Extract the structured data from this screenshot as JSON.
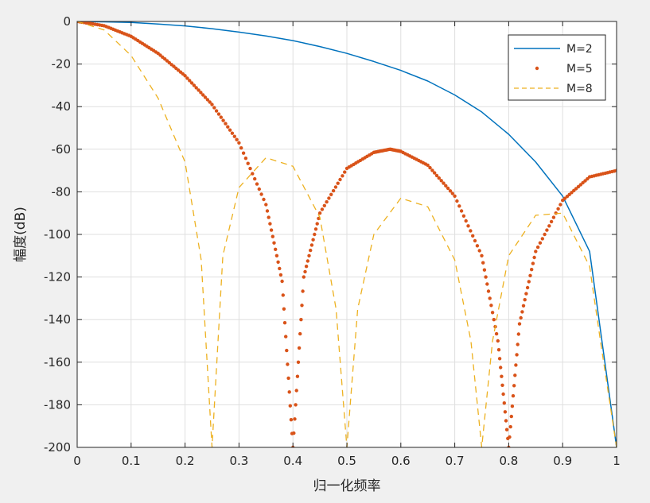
{
  "chart_data": {
    "type": "line",
    "xlabel": "归一化频率",
    "ylabel": "幅度(dB)",
    "xlim": [
      0,
      1
    ],
    "ylim": [
      -200,
      0
    ],
    "xticks": [
      "0",
      "0.1",
      "0.2",
      "0.3",
      "0.4",
      "0.5",
      "0.6",
      "0.7",
      "0.8",
      "0.9",
      "1"
    ],
    "yticks": [
      "0",
      "-20",
      "-40",
      "-60",
      "-80",
      "-100",
      "-120",
      "-140",
      "-160",
      "-180",
      "-200"
    ],
    "grid": true,
    "legend_position": "top-right",
    "series": [
      {
        "name": "M=2",
        "style": "solid",
        "color": "#0072BD",
        "x": [
          0,
          0.05,
          0.1,
          0.15,
          0.2,
          0.25,
          0.3,
          0.35,
          0.4,
          0.45,
          0.5,
          0.55,
          0.6,
          0.65,
          0.7,
          0.75,
          0.8,
          0.85,
          0.9,
          0.95,
          1.0
        ],
        "y": [
          0,
          -0.2,
          -0.5,
          -1.2,
          -2.1,
          -3.4,
          -5.0,
          -6.8,
          -9.0,
          -11.8,
          -15.0,
          -18.8,
          -23.0,
          -28.0,
          -34.5,
          -42.5,
          -53.0,
          -66.0,
          -82.0,
          -108.0,
          -200
        ]
      },
      {
        "name": "M=5",
        "style": "dotted",
        "color": "#D95319",
        "x": [
          0,
          0.05,
          0.1,
          0.15,
          0.2,
          0.25,
          0.3,
          0.35,
          0.38,
          0.4,
          0.42,
          0.45,
          0.5,
          0.55,
          0.58,
          0.6,
          0.65,
          0.7,
          0.75,
          0.78,
          0.8,
          0.82,
          0.85,
          0.9,
          0.95,
          1.0
        ],
        "y": [
          0,
          -2.0,
          -7.0,
          -15.0,
          -25.5,
          -39.0,
          -57.0,
          -86.0,
          -122.0,
          -200,
          -120.0,
          -90.0,
          -69.0,
          -61.5,
          -60.0,
          -61.0,
          -67.5,
          -82.0,
          -110.0,
          -150.0,
          -200,
          -142.0,
          -108.0,
          -84.0,
          -73.0,
          -70.0
        ]
      },
      {
        "name": "M=8",
        "style": "dashed",
        "color": "#EDB120",
        "x": [
          0,
          0.05,
          0.1,
          0.15,
          0.2,
          0.23,
          0.25,
          0.27,
          0.3,
          0.35,
          0.4,
          0.45,
          0.48,
          0.5,
          0.52,
          0.55,
          0.6,
          0.65,
          0.7,
          0.73,
          0.75,
          0.77,
          0.8,
          0.85,
          0.9,
          0.95,
          0.97,
          1.0
        ],
        "y": [
          0,
          -4.0,
          -16.0,
          -36.0,
          -66.0,
          -112.0,
          -200,
          -110.0,
          -78.0,
          -64.0,
          -68.0,
          -92.0,
          -135.0,
          -200,
          -135.0,
          -100.0,
          -83.0,
          -87.0,
          -112.0,
          -150.0,
          -200,
          -150.0,
          -110.0,
          -91.0,
          -90.0,
          -115.0,
          -150.0,
          -200
        ]
      }
    ]
  }
}
